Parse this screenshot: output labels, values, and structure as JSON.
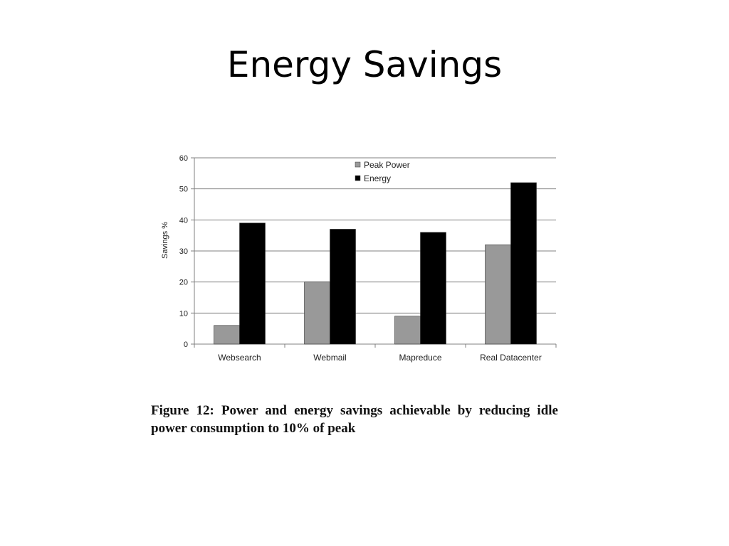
{
  "slide": {
    "title": "Energy Savings",
    "caption": "Figure 12: Power and energy savings achievable by reducing idle power consumption to 10% of peak"
  },
  "colors": {
    "peak_power": "#999999",
    "energy": "#000000",
    "gridline": "#808080",
    "axis": "#808080"
  },
  "chart_data": {
    "type": "bar",
    "title": "",
    "xlabel": "",
    "ylabel": "Savings %",
    "ylim": [
      0,
      60
    ],
    "yticks": [
      0,
      10,
      20,
      30,
      40,
      50,
      60
    ],
    "grid": true,
    "legend_position": "top-center",
    "categories": [
      "Websearch",
      "Webmail",
      "Mapreduce",
      "Real Datacenter"
    ],
    "series": [
      {
        "name": "Peak Power",
        "color": "#999999",
        "values": [
          6,
          20,
          9,
          32
        ]
      },
      {
        "name": "Energy",
        "color": "#000000",
        "values": [
          39,
          37,
          36,
          52
        ]
      }
    ]
  }
}
